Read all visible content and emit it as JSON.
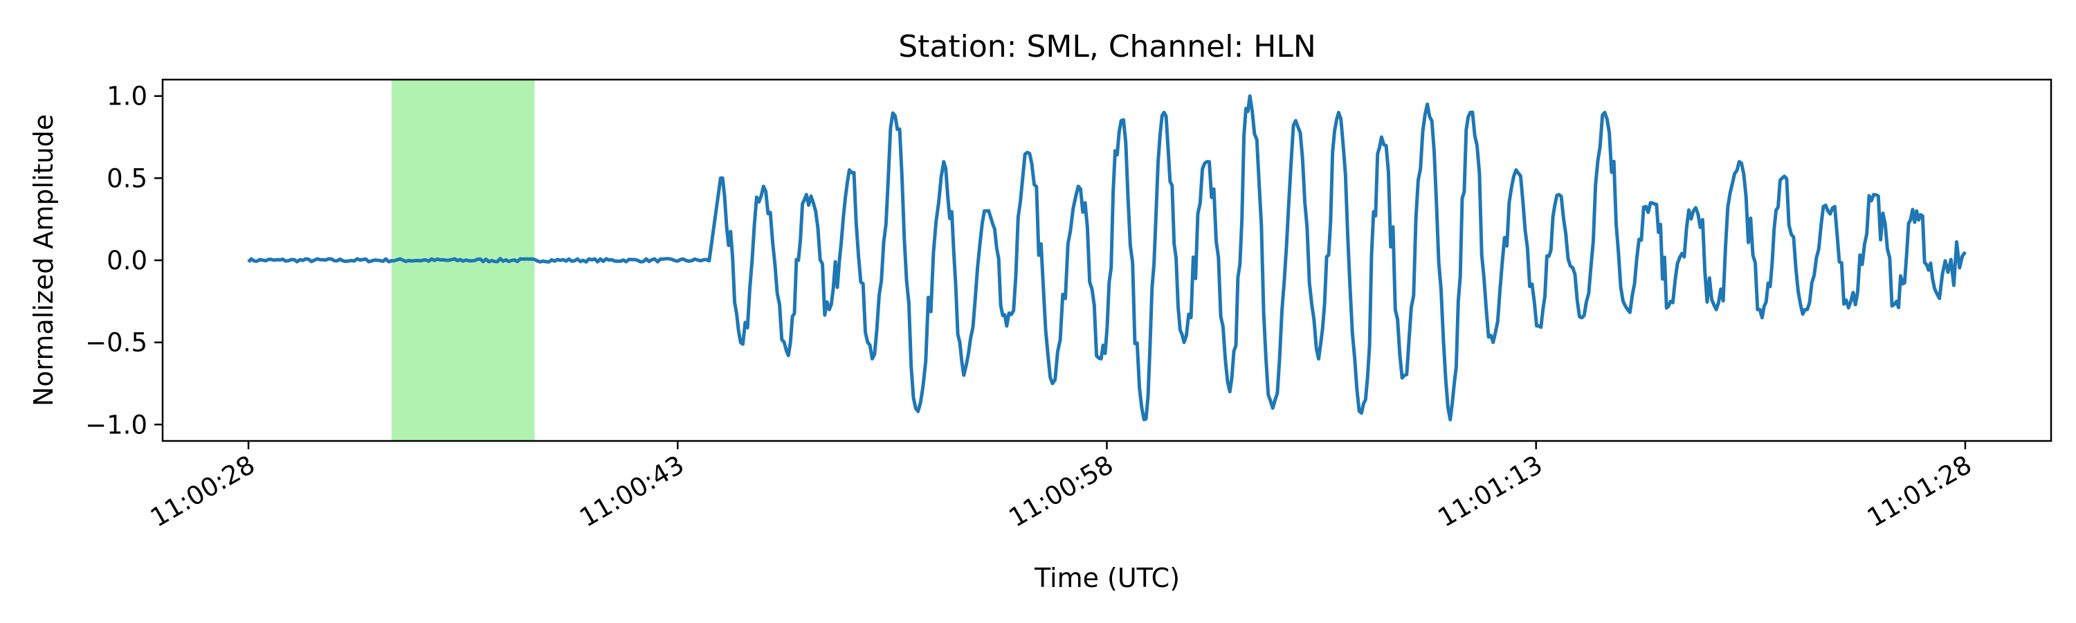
{
  "chart_data": {
    "type": "line",
    "title": "Station: SML, Channel: HLN",
    "xlabel": "Time (UTC)",
    "ylabel": "Normalized Amplitude",
    "x_time_range_utc": [
      "11:00:25",
      "11:01:31"
    ],
    "ylim": [
      -1.1,
      1.1
    ],
    "x_ticks": [
      "11:00:28",
      "11:00:43",
      "11:00:58",
      "11:01:13",
      "11:01:28"
    ],
    "y_ticks": [
      "1.0",
      "0.5",
      "0.0",
      "−0.5",
      "−1.0"
    ],
    "y_tick_values": [
      1.0,
      0.5,
      0.0,
      -0.5,
      -1.0
    ],
    "grid": false,
    "highlight_window_utc": [
      "11:00:33",
      "11:00:38"
    ],
    "highlight_color": "#b1f2b1",
    "series": [
      {
        "color": "#1f77b4",
        "x": [
          "11:00:28",
          "11:00:44.5",
          "11:00:45.2",
          "11:00:46",
          "11:00:46.8",
          "11:00:47.5",
          "11:00:48.3",
          "11:00:49",
          "11:00:49.8",
          "11:00:50.6",
          "11:00:51.4",
          "11:00:52.3",
          "11:00:53",
          "11:00:53.8",
          "11:00:54.5",
          "11:00:55.3",
          "11:00:56.1",
          "11:00:57",
          "11:00:57.8",
          "11:00:58.5",
          "11:00:59.3",
          "11:01:00",
          "11:01:00.7",
          "11:01:01.5",
          "11:01:02.3",
          "11:01:03",
          "11:01:03.8",
          "11:01:04.6",
          "11:01:05.4",
          "11:01:06.1",
          "11:01:06.9",
          "11:01:07.6",
          "11:01:08.4",
          "11:01:09.2",
          "11:01:10",
          "11:01:10.7",
          "11:01:11.5",
          "11:01:12.3",
          "11:01:13.1",
          "11:01:13.8",
          "11:01:14.6",
          "11:01:15.4",
          "11:01:16.2",
          "11:01:17",
          "11:01:17.7",
          "11:01:18.5",
          "11:01:19.3",
          "11:01:20.1",
          "11:01:20.9",
          "11:01:21.6",
          "11:01:22.4",
          "11:01:23.2",
          "11:01:24",
          "11:01:24.8",
          "11:01:25.6",
          "11:01:26.3",
          "11:01:27",
          "11:01:28"
        ],
        "y": [
          0.0,
          0.5,
          -0.5,
          0.45,
          -0.55,
          0.4,
          -0.3,
          0.55,
          -0.6,
          0.88,
          -0.92,
          0.6,
          -0.7,
          0.3,
          -0.4,
          0.65,
          -0.75,
          0.45,
          -0.6,
          0.85,
          -0.97,
          0.9,
          -0.5,
          0.6,
          -0.8,
          1.0,
          -0.9,
          0.85,
          -0.6,
          0.9,
          -0.93,
          0.75,
          -0.7,
          0.95,
          -0.97,
          0.9,
          -0.5,
          0.55,
          -0.4,
          0.4,
          -0.35,
          0.9,
          -0.3,
          0.35,
          -0.25,
          0.3,
          -0.3,
          0.6,
          -0.35,
          0.5,
          -0.3,
          0.3,
          -0.25,
          0.4,
          -0.25,
          0.3,
          -0.2,
          0.05
        ]
      }
    ]
  }
}
